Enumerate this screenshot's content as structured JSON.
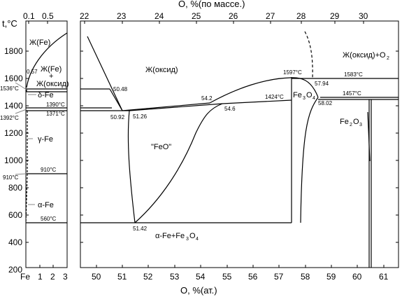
{
  "chart_data": {
    "type": "diagram",
    "title_top": "O, %(по массе.)",
    "title_bottom": "O, %(ат.)",
    "y_label": "t,°C",
    "y_ticks": [
      "1800",
      "1600",
      "1400",
      "1200",
      "1000",
      "800",
      "600",
      "400",
      "200"
    ],
    "left_panel": {
      "bottom_ticks": [
        "Fe",
        "1",
        "2",
        "3"
      ],
      "top_ticks": [
        "0.1",
        "0.5"
      ],
      "point_labels": {
        "t1536": "1536°C",
        "t1392": "1392°C",
        "t910": "910°C",
        "c057": "0.57",
        "t1390": "1390°C",
        "t1371": "1371°C",
        "t910b": "910°C",
        "t560": "560°C"
      },
      "phase_labels": {
        "liquid_fe": "Ж(Fe)",
        "liquid_mix_1": "Ж(Fe)",
        "liquid_mix_2": "+",
        "liquid_mix_3": "Ж(оксид)",
        "delta_fe": "δ-Fe",
        "gamma_fe": "γ-Fe",
        "alpha_fe": "α-Fe"
      }
    },
    "main_panel": {
      "bottom_ticks": [
        "50",
        "51",
        "52",
        "53",
        "54",
        "55",
        "56",
        "57",
        "58",
        "59",
        "60",
        "61"
      ],
      "top_ticks": [
        "22",
        "23",
        "24",
        "25",
        "26",
        "27",
        "28",
        "29",
        "30"
      ],
      "point_labels": {
        "c5048": "50.48",
        "c5092": "50.92",
        "c5126": "51.26",
        "c542": "54.2",
        "c546": "54.6",
        "c5142": "51.42",
        "t1424": "1424°C",
        "t1597": "1597°C",
        "c5794": "57.94",
        "c5802": "58.02",
        "t1583": "1583°C",
        "t1457": "1457°C"
      },
      "phase_labels": {
        "liquid_oxide": "Ж(оксид)",
        "feo": "\"FeO\"",
        "fe3o4": "Fe",
        "fe3o4_sub3": "3",
        "fe3o4_o": "O",
        "fe3o4_sub4": "4",
        "fe2o3": "Fe",
        "fe2o3_sub2": "2",
        "fe2o3_o": "O",
        "fe2o3_sub3": "3",
        "liq_o2": "Ж(оксид)+O",
        "liq_o2_sub": "2",
        "alpha_mag_1": "α-Fe+Fe",
        "alpha_mag_sub3": "3",
        "alpha_mag_o": "O",
        "alpha_mag_sub4": "4"
      }
    }
  }
}
